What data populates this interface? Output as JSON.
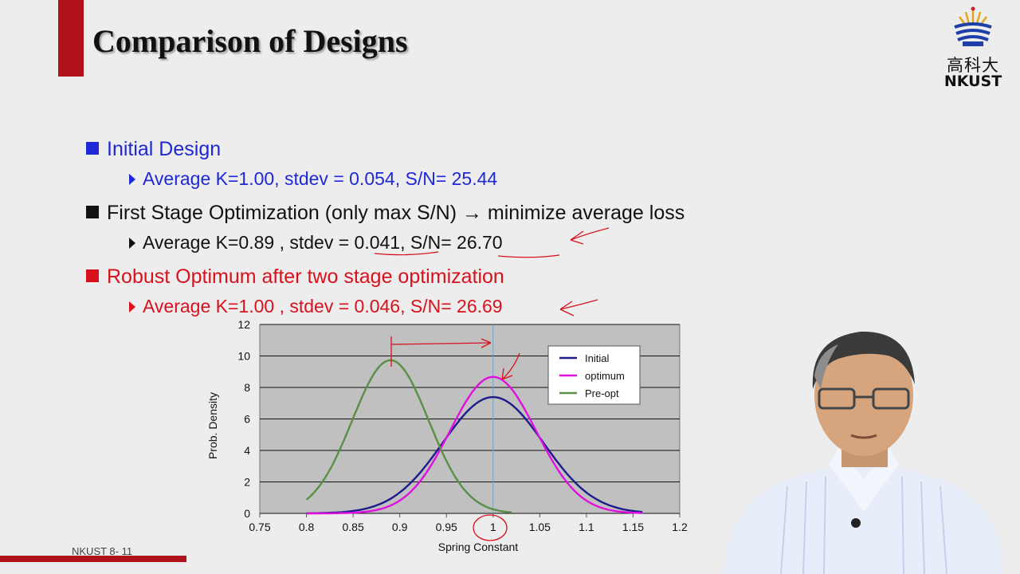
{
  "slide": {
    "title": "Comparison of Designs",
    "logo": {
      "cn": "高科大",
      "en": "NKUST"
    },
    "footer": "NKUST 8- 11",
    "colors": {
      "blue": "#1f28d6",
      "red": "#d8111d",
      "accent": "#b0121b"
    }
  },
  "bullets": [
    {
      "label": "Initial Design",
      "sub": "Average K=1.00, stdev = 0.054, S/N= 25.44"
    },
    {
      "label": "First Stage Optimization (only max S/N) → minimize average loss",
      "sub": "Average K=0.89 , stdev = 0.041, S/N= 26.70"
    },
    {
      "label": "Robust Optimum after two stage optimization",
      "sub": "Average K=1.00 , stdev = 0.046, S/N= 26.69"
    }
  ],
  "chart_data": {
    "type": "line",
    "xlabel": "Spring Constant",
    "ylabel": "Prob. Density",
    "xlim": [
      0.75,
      1.2
    ],
    "ylim": [
      0,
      12
    ],
    "xticks": [
      "0.75",
      "0.8",
      "0.85",
      "0.9",
      "0.95",
      "1",
      "1.05",
      "1.1",
      "1.15",
      "1.2"
    ],
    "yticks": [
      "0",
      "2",
      "4",
      "6",
      "8",
      "10",
      "12"
    ],
    "grid": true,
    "legend_position": "top-right",
    "series": [
      {
        "name": "Initial",
        "color": "#1c1c8c",
        "mean": 1.0,
        "stdev": 0.054,
        "x_range": [
          0.8,
          1.16
        ]
      },
      {
        "name": "optimum",
        "color": "#e010e0",
        "mean": 1.0,
        "stdev": 0.046,
        "x_range": [
          0.8,
          1.16
        ]
      },
      {
        "name": "Pre-opt",
        "color": "#5a8f45",
        "mean": 0.89,
        "stdev": 0.041,
        "x_range": [
          0.8,
          1.02
        ]
      }
    ],
    "reference_line_x": 1.0
  }
}
